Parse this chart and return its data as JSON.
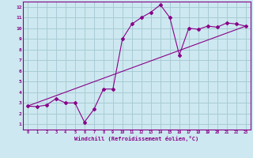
{
  "xlabel": "Windchill (Refroidissement éolien,°C)",
  "bg_color": "#cde8f0",
  "line_color": "#880088",
  "grid_color": "#a8ccd4",
  "scatter_x": [
    0,
    1,
    2,
    3,
    4,
    5,
    6,
    7,
    8,
    9,
    10,
    11,
    12,
    13,
    14,
    15,
    16,
    17,
    18,
    19,
    20,
    21,
    22,
    23
  ],
  "scatter_y": [
    2.7,
    2.65,
    2.8,
    3.4,
    3.0,
    3.0,
    1.2,
    2.4,
    4.3,
    4.3,
    9.0,
    10.4,
    11.0,
    11.5,
    12.2,
    11.0,
    7.5,
    10.0,
    9.9,
    10.2,
    10.1,
    10.5,
    10.4,
    10.2
  ],
  "trend_x": [
    0,
    23
  ],
  "trend_y": [
    2.7,
    10.2
  ],
  "xlim": [
    -0.5,
    23.5
  ],
  "ylim": [
    0.5,
    12.5
  ],
  "xticks": [
    0,
    1,
    2,
    3,
    4,
    5,
    6,
    7,
    8,
    9,
    10,
    11,
    12,
    13,
    14,
    15,
    16,
    17,
    18,
    19,
    20,
    21,
    22,
    23
  ],
  "yticks": [
    1,
    2,
    3,
    4,
    5,
    6,
    7,
    8,
    9,
    10,
    11,
    12
  ]
}
